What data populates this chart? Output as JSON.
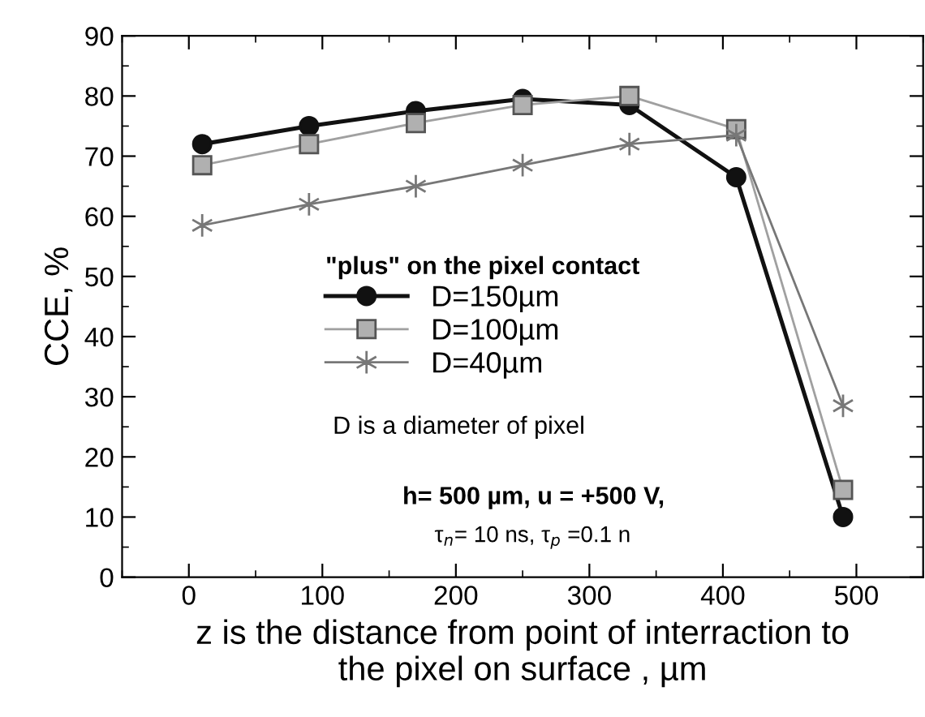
{
  "chart_data": {
    "type": "line",
    "xlabel": "z is the distance from point of interraction to\nthe pixel on surface , µm",
    "ylabel": "CCE, %",
    "x": [
      10,
      90,
      170,
      250,
      330,
      410,
      490
    ],
    "series": [
      {
        "name": "D=150µm",
        "color": "#111111",
        "marker": "circle",
        "values": [
          72,
          75,
          77.5,
          79.5,
          78.5,
          66.5,
          10
        ]
      },
      {
        "name": "D=100µm",
        "color": "#a0a0a0",
        "marker": "square",
        "values": [
          68.5,
          72,
          75.5,
          78.5,
          80,
          74.5,
          14.5
        ]
      },
      {
        "name": "D=40µm",
        "color": "#777777",
        "marker": "cross",
        "values": [
          58.5,
          62,
          65,
          68.5,
          72,
          73.5,
          28.5
        ]
      }
    ],
    "legend_title": "\"plus\" on the pixel contact",
    "legend": "center",
    "annotations": [
      "D is a diameter of pixel",
      "h= 500 µm, u = +500 V,",
      "τ$_{n}$= 10 ns, τ$_{p}$ =0.1 n"
    ],
    "xlim": [
      -50,
      550
    ],
    "xticks": [
      0,
      100,
      200,
      300,
      400,
      500
    ],
    "ylim": [
      0,
      90
    ],
    "yticks": [
      0,
      10,
      20,
      30,
      40,
      50,
      60,
      70,
      80,
      90
    ],
    "grid": false
  }
}
